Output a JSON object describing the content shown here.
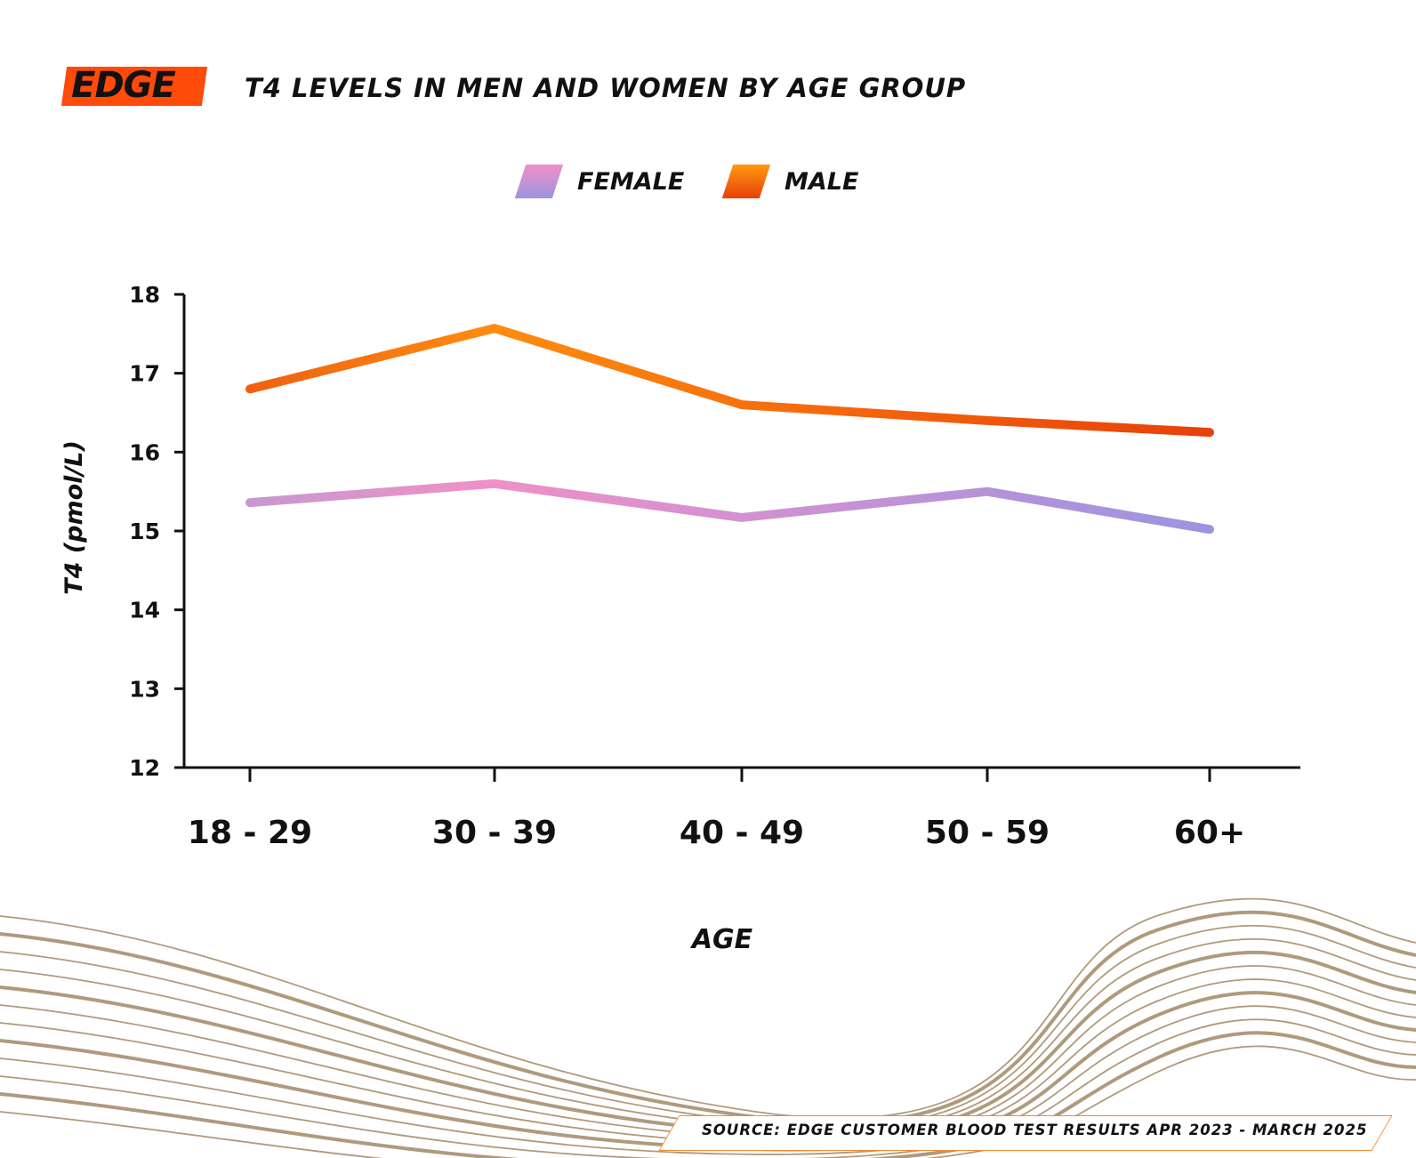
{
  "brand": {
    "logo_text": "EDGE",
    "logo_color": "#ff4a0a"
  },
  "source": "SOURCE: EDGE CUSTOMER BLOOD TEST RESULTS APR 2023 - MARCH 2025",
  "chart_data": {
    "type": "line",
    "title": "T4 LEVELS IN MEN AND WOMEN BY AGE GROUP",
    "xlabel": "AGE",
    "ylabel": "T4 (pmol/L)",
    "categories": [
      "18 - 29",
      "30 - 39",
      "40 - 49",
      "50 - 59",
      "60+"
    ],
    "ylim": [
      12,
      18
    ],
    "yticks": [
      12,
      13,
      14,
      15,
      16,
      17,
      18
    ],
    "grid": false,
    "legend_position": "top-center",
    "series": [
      {
        "name": "FEMALE",
        "values": [
          15.36,
          15.6,
          15.17,
          15.5,
          15.02
        ],
        "color_start": "#f090c8",
        "color_end": "#9b94e0"
      },
      {
        "name": "MALE",
        "values": [
          16.8,
          17.57,
          16.6,
          16.4,
          16.25
        ],
        "color_start": "#ff8c10",
        "color_end": "#e8400a"
      }
    ]
  }
}
